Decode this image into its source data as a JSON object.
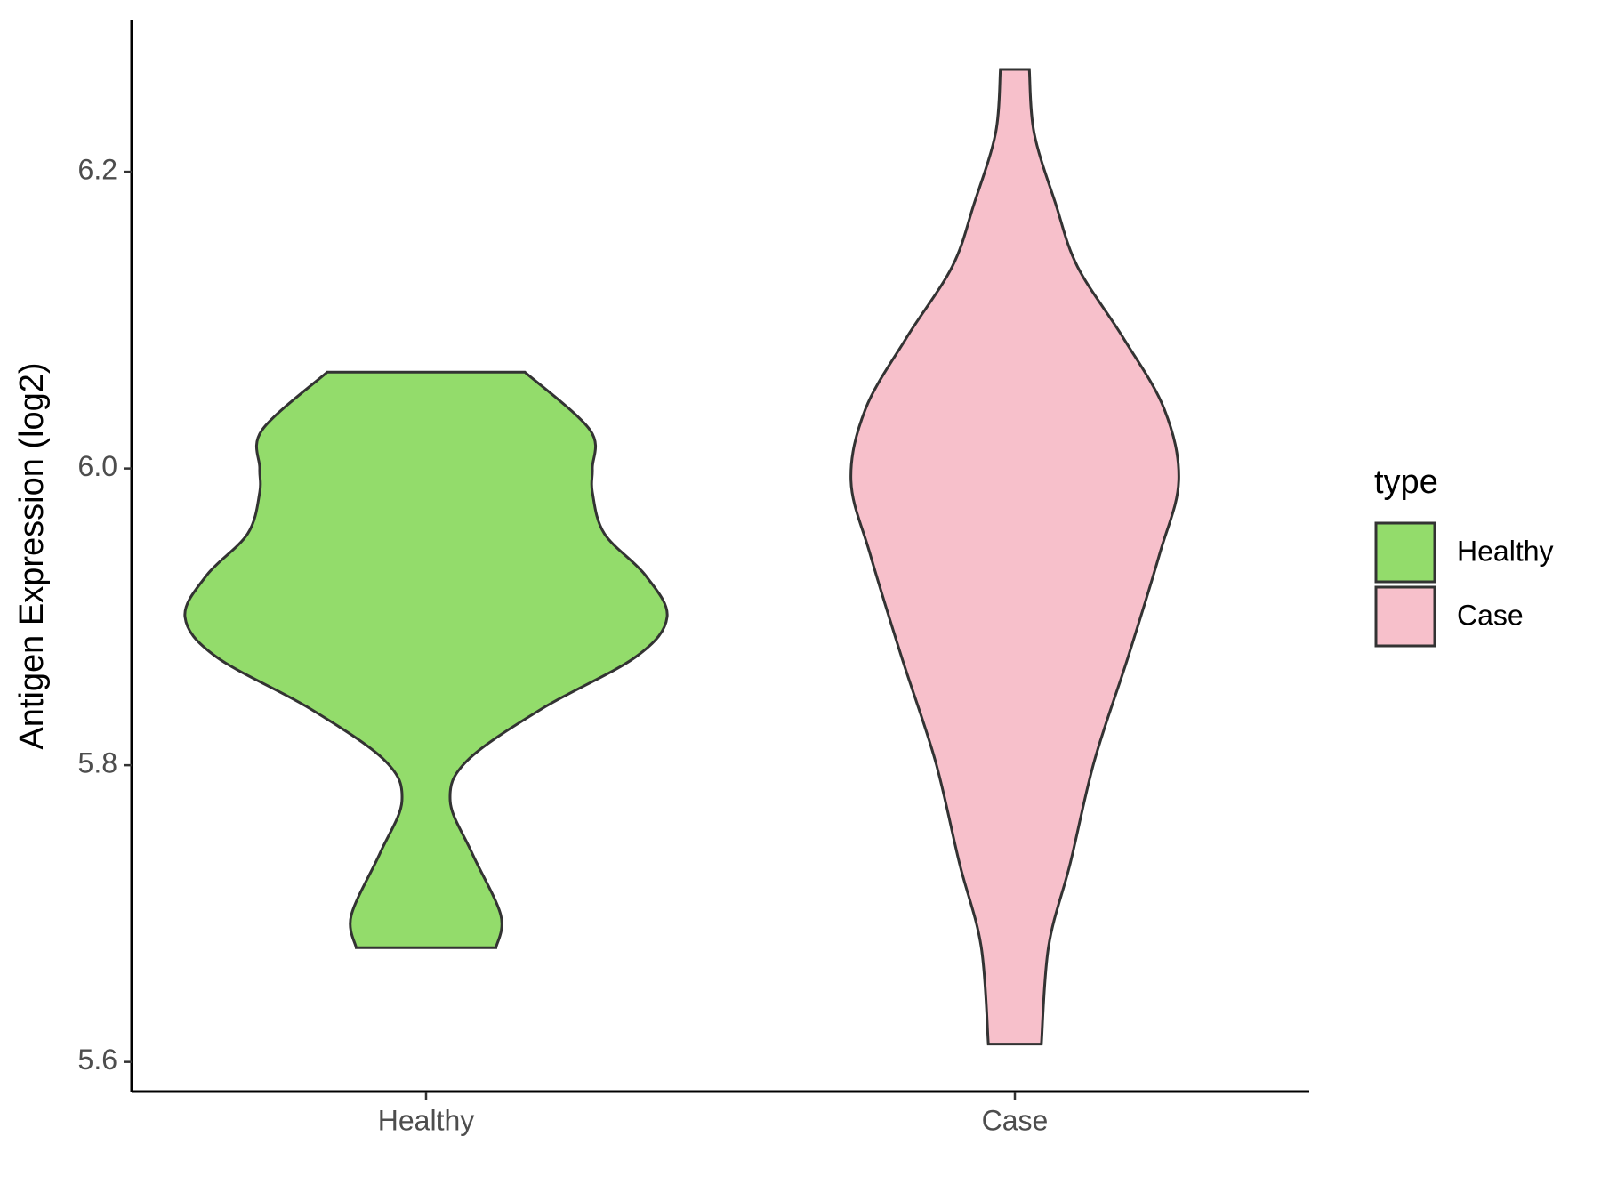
{
  "chart_data": {
    "type": "violin",
    "y_label": "Antigen Expression (log2)",
    "categories": [
      "Healthy",
      "Case"
    ],
    "ylim": [
      5.58,
      6.302
    ],
    "yticks": [
      {
        "value": 5.6,
        "label": "5.6"
      },
      {
        "value": 5.8,
        "label": "5.8"
      },
      {
        "value": 6.0,
        "label": "6.0"
      },
      {
        "value": 6.2,
        "label": "6.2"
      }
    ],
    "legend_title": "type",
    "legend_position": "right",
    "series": [
      {
        "name": "Healthy",
        "color": "#93dc6b",
        "y": [
          6.065,
          6.026,
          6.0,
          5.984,
          5.956,
          5.928,
          5.9,
          5.873,
          5.838,
          5.803,
          5.776,
          5.741,
          5.699,
          5.677
        ],
        "density": [
          0.41,
          0.68,
          0.69,
          0.69,
          0.74,
          0.91,
          1.0,
          0.87,
          0.48,
          0.17,
          0.1,
          0.19,
          0.31,
          0.29
        ]
      },
      {
        "name": "Case",
        "color": "#f7c0cb",
        "y": [
          6.269,
          6.226,
          6.178,
          6.136,
          6.088,
          6.04,
          5.992,
          5.942,
          5.873,
          5.803,
          5.734,
          5.678,
          5.612
        ],
        "density": [
          0.06,
          0.08,
          0.17,
          0.26,
          0.45,
          0.62,
          0.68,
          0.6,
          0.47,
          0.33,
          0.23,
          0.14,
          0.11
        ]
      }
    ]
  }
}
